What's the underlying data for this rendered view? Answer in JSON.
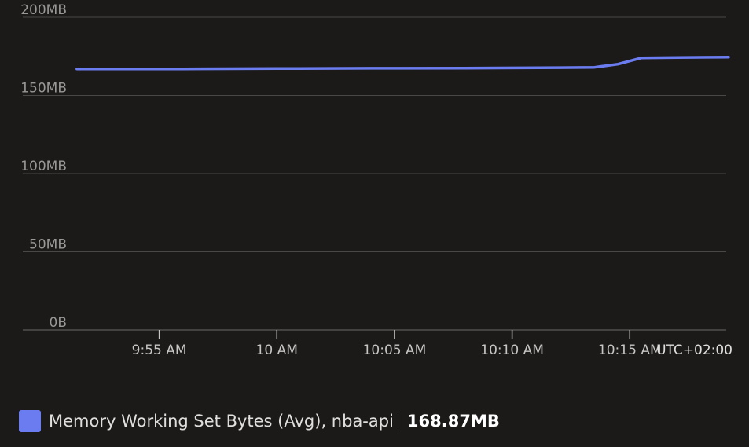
{
  "chart_data": {
    "type": "line",
    "y_ticks": [
      "200MB",
      "150MB",
      "100MB",
      "50MB",
      "0B"
    ],
    "y_tick_values": [
      200,
      150,
      100,
      50,
      0
    ],
    "ylim": [
      0,
      200
    ],
    "y_unit": "MB",
    "x_ticks": [
      "9:55 AM",
      "10 AM",
      "10:05 AM",
      "10:10 AM",
      "10:15 AM"
    ],
    "x_tick_minutes": [
      595,
      600,
      605,
      610,
      615
    ],
    "xlim_minutes": [
      589.2,
      619.1
    ],
    "timezone": "UTC+02:00",
    "grid": true,
    "legend_position": "bottom-left",
    "series": [
      {
        "name": "Memory Working Set Bytes (Avg), nba-api",
        "color": "#6b7cf0",
        "summary_value": "168.87MB",
        "x_minutes": [
          591.5,
          596,
          600,
          604,
          608,
          612,
          613.5,
          614.5,
          615.5,
          617,
          619.2
        ],
        "values": [
          167,
          167,
          167.2,
          167.4,
          167.5,
          167.8,
          168,
          170,
          174,
          174.2,
          174.5
        ]
      }
    ]
  }
}
